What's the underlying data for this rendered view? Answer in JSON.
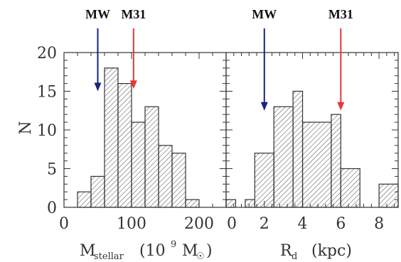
{
  "chart_data": [
    {
      "type": "bar",
      "xlabel_main": "M",
      "xlabel_sub": "stellar",
      "xlabel_units_open": "(10",
      "xlabel_units_exp": "9",
      "xlabel_units_m": "M",
      "xlabel_units_sun": "☉",
      "xlabel_units_close": ")",
      "ylabel": "N",
      "xlim": [
        0,
        240
      ],
      "ylim": [
        0,
        20
      ],
      "xticks": [
        "0",
        "100",
        "200"
      ],
      "yticks": [
        "0",
        "5",
        "10",
        "15",
        "20"
      ],
      "bins": [
        {
          "x0": 20,
          "x1": 40,
          "count": 2
        },
        {
          "x0": 40,
          "x1": 60,
          "count": 4
        },
        {
          "x0": 60,
          "x1": 80,
          "count": 18
        },
        {
          "x0": 80,
          "x1": 100,
          "count": 16
        },
        {
          "x0": 100,
          "x1": 120,
          "count": 11
        },
        {
          "x0": 120,
          "x1": 140,
          "count": 13
        },
        {
          "x0": 140,
          "x1": 160,
          "count": 8
        },
        {
          "x0": 160,
          "x1": 180,
          "count": 7
        },
        {
          "x0": 180,
          "x1": 200,
          "count": 1
        }
      ],
      "markers": [
        {
          "label": "MW",
          "x": 50,
          "y": 15,
          "color": "#1a237e"
        },
        {
          "label": "M31",
          "x": 103,
          "y": 15.3,
          "color": "#e53935"
        }
      ],
      "hatch": "diagonal"
    },
    {
      "type": "bar",
      "xlabel_main": "R",
      "xlabel_sub": "d",
      "xlabel_units": "(kpc)",
      "xlim": [
        0,
        9
      ],
      "ylim": [
        0,
        20
      ],
      "xticks": [
        "0",
        "2",
        "4",
        "6",
        "8"
      ],
      "bins": [
        {
          "x0": 0.0,
          "x1": 0.5,
          "count": 1
        },
        {
          "x0": 1.0,
          "x1": 1.5,
          "count": 1
        },
        {
          "x0": 1.5,
          "x1": 2.5,
          "count": 7
        },
        {
          "x0": 2.5,
          "x1": 3.5,
          "count": 13
        },
        {
          "x0": 3.5,
          "x1": 4.0,
          "count": 15
        },
        {
          "x0": 4.0,
          "x1": 5.5,
          "count": 11
        },
        {
          "x0": 5.5,
          "x1": 6.0,
          "count": 12
        },
        {
          "x0": 6.0,
          "x1": 7.0,
          "count": 5
        },
        {
          "x0": 8.0,
          "x1": 9.0,
          "count": 3
        }
      ],
      "markers": [
        {
          "label": "MW",
          "x": 2.0,
          "y": 12.5,
          "color": "#1a237e"
        },
        {
          "label": "M31",
          "x": 6.0,
          "y": 12.5,
          "color": "#e53935"
        }
      ],
      "hatch": "diagonal"
    }
  ],
  "colors": {
    "axis": "#333333",
    "bar_outline": "#333333",
    "hatch": "#555555"
  }
}
